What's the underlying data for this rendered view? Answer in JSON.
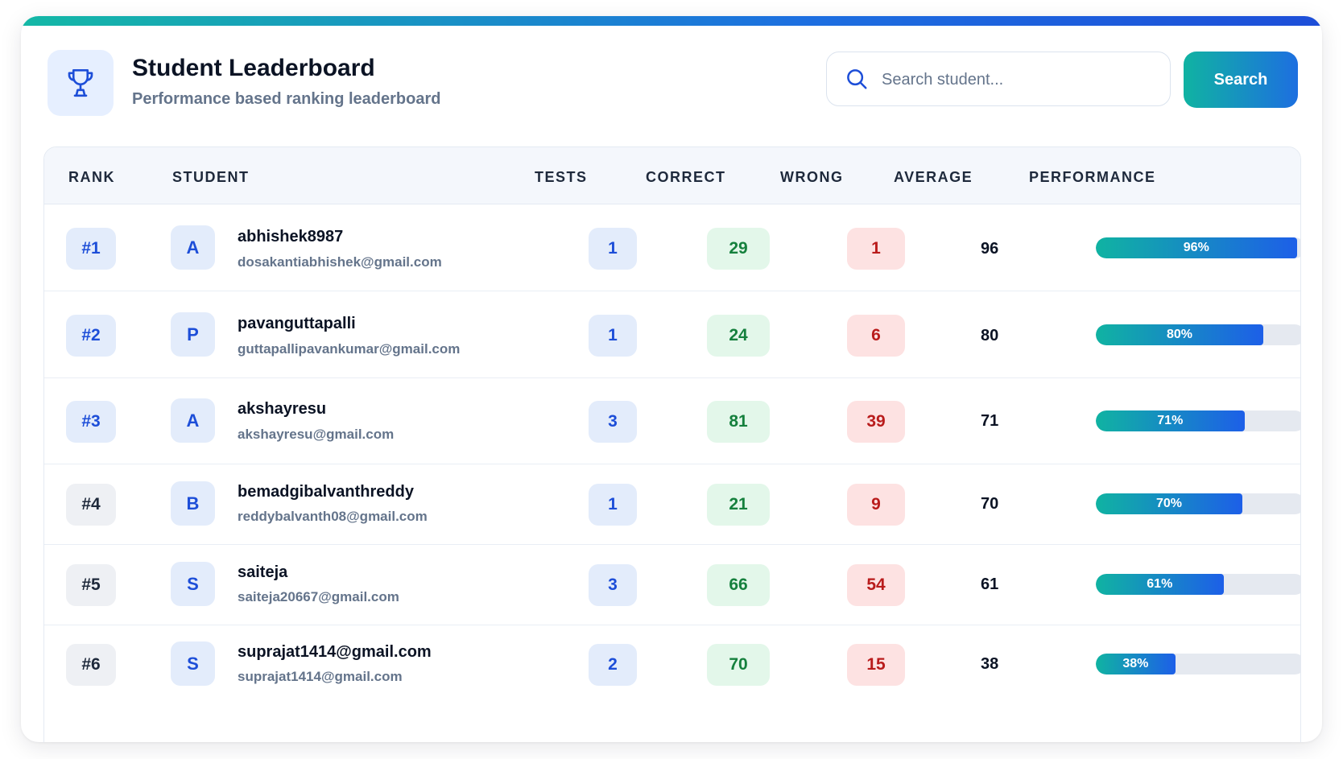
{
  "header": {
    "title": "Student Leaderboard",
    "subtitle": "Performance based ranking leaderboard"
  },
  "search": {
    "placeholder": "Search student...",
    "button_label": "Search"
  },
  "table": {
    "columns": [
      "RANK",
      "STUDENT",
      "TESTS",
      "CORRECT",
      "WRONG",
      "AVERAGE",
      "PERFORMANCE"
    ],
    "rows": [
      {
        "rank": "#1",
        "initial": "A",
        "name": "abhishek8987",
        "email": "dosakantiabhishek@gmail.com",
        "tests": "1",
        "correct": "29",
        "wrong": "1",
        "average": "96",
        "performance": 96,
        "performance_label": "96%"
      },
      {
        "rank": "#2",
        "initial": "P",
        "name": "pavanguttapalli",
        "email": "guttapallipavankumar@gmail.com",
        "tests": "1",
        "correct": "24",
        "wrong": "6",
        "average": "80",
        "performance": 80,
        "performance_label": "80%"
      },
      {
        "rank": "#3",
        "initial": "A",
        "name": "akshayresu",
        "email": "akshayresu@gmail.com",
        "tests": "3",
        "correct": "81",
        "wrong": "39",
        "average": "71",
        "performance": 71,
        "performance_label": "71%"
      },
      {
        "rank": "#4",
        "initial": "B",
        "name": "bemadgibalvanthreddy",
        "email": "reddybalvanth08@gmail.com",
        "tests": "1",
        "correct": "21",
        "wrong": "9",
        "average": "70",
        "performance": 70,
        "performance_label": "70%"
      },
      {
        "rank": "#5",
        "initial": "S",
        "name": "saiteja",
        "email": "saiteja20667@gmail.com",
        "tests": "3",
        "correct": "66",
        "wrong": "54",
        "average": "61",
        "performance": 61,
        "performance_label": "61%"
      },
      {
        "rank": "#6",
        "initial": "S",
        "name": "suprajat1414@gmail.com",
        "email": "suprajat1414@gmail.com",
        "tests": "2",
        "correct": "70",
        "wrong": "15",
        "average": "38",
        "performance": 38,
        "performance_label": "38%"
      }
    ]
  },
  "icons": {
    "logo": "trophy-icon",
    "search": "search-icon"
  },
  "colors": {
    "accent_teal": "#10b3a2",
    "accent_blue": "#1d5fe8",
    "correct": "#15803d",
    "wrong": "#b91c1c"
  }
}
